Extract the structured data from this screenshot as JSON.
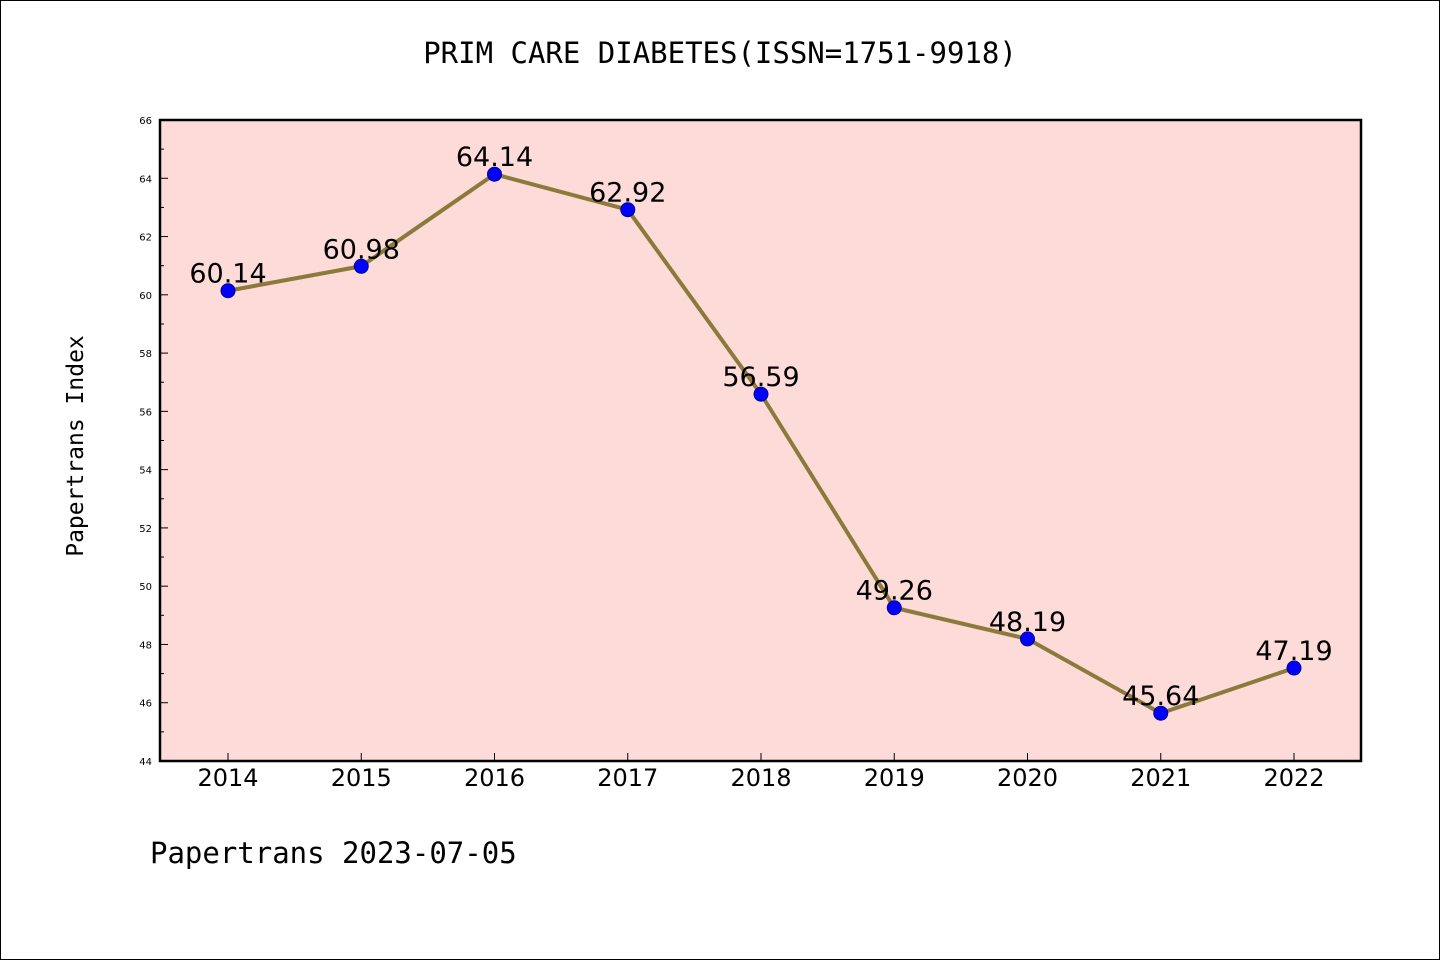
{
  "title": "PRIM CARE DIABETES(ISSN=1751-9918)",
  "footer": "Papertrans 2023-07-05",
  "chart_data": {
    "type": "line",
    "title": "PRIM CARE DIABETES(ISSN=1751-9918)",
    "xlabel": "",
    "ylabel": "Papertrans Index",
    "categories": [
      "2014",
      "2015",
      "2016",
      "2017",
      "2018",
      "2019",
      "2020",
      "2021",
      "2022"
    ],
    "values": [
      60.14,
      60.98,
      64.14,
      62.92,
      56.59,
      49.26,
      48.19,
      45.64,
      47.19
    ],
    "data_labels": [
      "60.14",
      "60.98",
      "64.14",
      "62.92",
      "56.59",
      "49.26",
      "48.19",
      "45.64",
      "47.19"
    ],
    "ylim": [
      44,
      66
    ],
    "yticks": [
      44,
      46,
      48,
      50,
      52,
      54,
      56,
      58,
      60,
      62,
      64,
      66
    ],
    "grid": false,
    "colors": {
      "plot_background": "#fddbd9",
      "line": "#8b7a3a",
      "marker": "#0000ff"
    }
  }
}
